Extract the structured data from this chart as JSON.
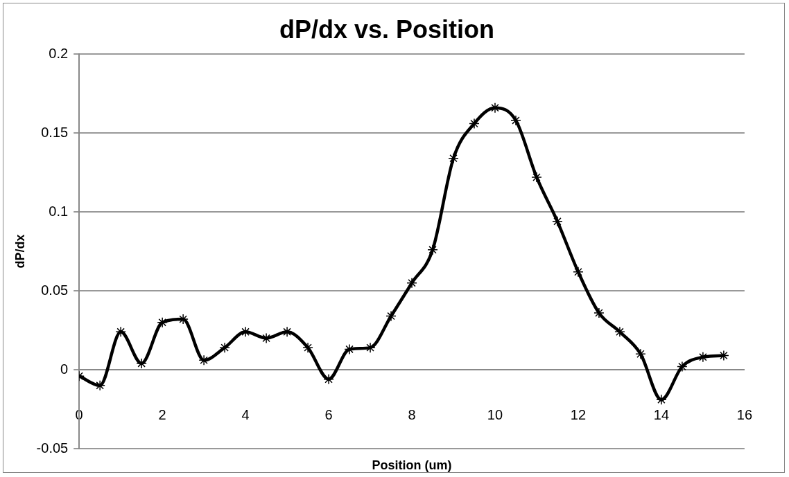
{
  "chart_data": {
    "type": "line",
    "title": "dP/dx vs. Position",
    "xlabel": "Position (um)",
    "ylabel": "dP/dx",
    "x": [
      0,
      0.5,
      1,
      1.5,
      2,
      2.5,
      3,
      3.5,
      4,
      4.5,
      5,
      5.5,
      6,
      6.5,
      7,
      7.5,
      8,
      8.5,
      9,
      9.5,
      10,
      10.5,
      11,
      11.5,
      12,
      12.5,
      13,
      13.5,
      14,
      14.5,
      15,
      15.5
    ],
    "series": [
      {
        "color": "#000000",
        "values": [
          -0.004,
          -0.01,
          0.024,
          0.004,
          0.03,
          0.032,
          0.006,
          0.014,
          0.024,
          0.02,
          0.024,
          0.014,
          -0.006,
          0.013,
          0.014,
          0.034,
          0.055,
          0.076,
          0.134,
          0.156,
          0.166,
          0.158,
          0.122,
          0.094,
          0.062,
          0.036,
          0.024,
          0.01,
          -0.019,
          0.002,
          0.008,
          0.009
        ]
      }
    ],
    "xlim": [
      0,
      16
    ],
    "xticks": [
      0,
      2,
      4,
      6,
      8,
      10,
      12,
      14,
      16
    ],
    "ylim": [
      -0.05,
      0.2
    ],
    "yticks": [
      -0.05,
      0,
      0.05,
      0.1,
      0.15,
      0.2
    ],
    "grid": "y",
    "legend": false,
    "marker": "cross",
    "line_style": "solid"
  }
}
